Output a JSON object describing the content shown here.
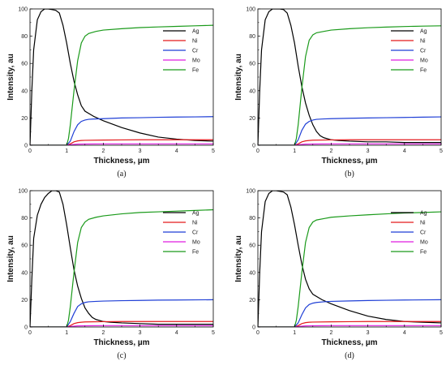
{
  "colors": {
    "Ag": "#000000",
    "Ni": "#e41a1c",
    "Cr": "#1f3fd6",
    "Mo": "#e01ce0",
    "Fe": "#1a9a1a"
  },
  "chart_data": [
    {
      "type": "line",
      "caption": "(a)",
      "xlabel": "Thickness, µm",
      "ylabel": "Intensity, au",
      "xlim": [
        0,
        5
      ],
      "ylim": [
        0,
        100
      ],
      "xticks": [
        "0",
        "1",
        "2",
        "3",
        "4",
        "5"
      ],
      "yticks": [
        "0",
        "20",
        "40",
        "60",
        "80",
        "100"
      ],
      "grid": false,
      "legend": "top-right",
      "series": [
        {
          "name": "Ag",
          "x": [
            0,
            0.05,
            0.1,
            0.2,
            0.3,
            0.4,
            0.5,
            0.6,
            0.7,
            0.8,
            0.9,
            1.0,
            1.1,
            1.2,
            1.3,
            1.4,
            1.5,
            1.75,
            2.0,
            2.5,
            3.0,
            3.5,
            4.0,
            4.5,
            5.0
          ],
          "y": [
            0,
            40,
            70,
            92,
            98,
            100,
            100,
            99.5,
            99,
            97,
            88,
            75,
            60,
            47,
            37,
            29,
            25,
            21,
            18,
            13,
            9,
            6,
            4.5,
            3.5,
            3
          ]
        },
        {
          "name": "Ni",
          "x": [
            0,
            1.0,
            1.1,
            1.2,
            1.3,
            1.4,
            1.5,
            2.0,
            2.5,
            3.0,
            4.0,
            5.0
          ],
          "y": [
            0,
            0,
            1,
            2.5,
            3.2,
            3.5,
            3.6,
            3.8,
            3.9,
            4,
            4,
            4
          ]
        },
        {
          "name": "Cr",
          "x": [
            0,
            1.0,
            1.1,
            1.2,
            1.3,
            1.4,
            1.5,
            1.6,
            1.7,
            2.0,
            2.5,
            3.0,
            3.5,
            4.0,
            4.5,
            5.0
          ],
          "y": [
            0,
            0,
            3,
            10,
            15,
            17.5,
            18.5,
            19,
            19.2,
            19.5,
            20,
            20.2,
            20.5,
            20.7,
            20.8,
            21
          ]
        },
        {
          "name": "Mo",
          "x": [
            0,
            1.0,
            1.1,
            1.2,
            1.3,
            1.5,
            2.0,
            3.0,
            4.0,
            5.0
          ],
          "y": [
            0,
            0,
            0.3,
            0.6,
            0.8,
            0.9,
            1,
            1,
            1,
            1
          ]
        },
        {
          "name": "Fe",
          "x": [
            0,
            1.0,
            1.05,
            1.1,
            1.2,
            1.3,
            1.4,
            1.5,
            1.6,
            1.8,
            2.0,
            2.5,
            3.0,
            3.5,
            4.0,
            4.5,
            5.0
          ],
          "y": [
            0,
            0,
            5,
            15,
            40,
            62,
            75,
            80,
            82,
            83.5,
            84.5,
            85.5,
            86.3,
            86.8,
            87.2,
            87.6,
            88
          ]
        }
      ]
    },
    {
      "type": "line",
      "caption": "(b)",
      "xlabel": "Thickness, µm",
      "ylabel": "Intensity, au",
      "xlim": [
        0,
        5
      ],
      "ylim": [
        0,
        100
      ],
      "xticks": [
        "0",
        "1",
        "2",
        "3",
        "4",
        "5"
      ],
      "yticks": [
        "0",
        "20",
        "40",
        "60",
        "80",
        "100"
      ],
      "grid": false,
      "legend": "top-right",
      "series": [
        {
          "name": "Ag",
          "x": [
            0,
            0.05,
            0.1,
            0.2,
            0.3,
            0.4,
            0.5,
            0.6,
            0.7,
            0.8,
            0.9,
            1.0,
            1.1,
            1.2,
            1.3,
            1.4,
            1.5,
            1.6,
            1.7,
            1.8,
            2.0,
            2.2,
            2.5,
            3.0,
            3.5,
            4.0,
            4.5,
            5.0
          ],
          "y": [
            0,
            40,
            70,
            92,
            98,
            100,
            100,
            100,
            99.5,
            97,
            88,
            75,
            58,
            43,
            31,
            22,
            15,
            10,
            7,
            5.5,
            4,
            3.5,
            3,
            2.5,
            2.5,
            2,
            2,
            2
          ]
        },
        {
          "name": "Ni",
          "x": [
            0,
            1.0,
            1.1,
            1.2,
            1.3,
            1.4,
            1.5,
            2.0,
            2.5,
            3.0,
            4.0,
            5.0
          ],
          "y": [
            0,
            0,
            1,
            2.5,
            3.2,
            3.5,
            3.7,
            3.9,
            4,
            4,
            4,
            4
          ]
        },
        {
          "name": "Cr",
          "x": [
            0,
            1.0,
            1.1,
            1.2,
            1.3,
            1.4,
            1.5,
            1.6,
            1.8,
            2.0,
            2.5,
            3.0,
            3.5,
            4.0,
            4.5,
            5.0
          ],
          "y": [
            0,
            0,
            4,
            11,
            15.5,
            17.5,
            18.5,
            19,
            19.3,
            19.5,
            19.8,
            20,
            20.2,
            20.4,
            20.6,
            20.8
          ]
        },
        {
          "name": "Mo",
          "x": [
            0,
            1.0,
            1.1,
            1.2,
            1.3,
            1.5,
            2.0,
            3.0,
            4.0,
            5.0
          ],
          "y": [
            0,
            0,
            0.3,
            0.6,
            0.8,
            0.9,
            1,
            1,
            1,
            1
          ]
        },
        {
          "name": "Fe",
          "x": [
            0,
            1.0,
            1.05,
            1.1,
            1.2,
            1.3,
            1.4,
            1.5,
            1.6,
            1.8,
            2.0,
            2.5,
            3.0,
            3.5,
            4.0,
            4.5,
            5.0
          ],
          "y": [
            0,
            0,
            5,
            15,
            42,
            65,
            77,
            81,
            82.5,
            83.5,
            84.5,
            85.5,
            86.2,
            86.7,
            87.1,
            87.4,
            87.6
          ]
        }
      ]
    },
    {
      "type": "line",
      "caption": "(c)",
      "xlabel": "Thickness, µm",
      "ylabel": "Intensity, au",
      "xlim": [
        0,
        5
      ],
      "ylim": [
        0,
        100
      ],
      "xticks": [
        "0",
        "1",
        "2",
        "3",
        "4",
        "5"
      ],
      "yticks": [
        "0",
        "20",
        "40",
        "60",
        "80",
        "100"
      ],
      "grid": false,
      "legend": "top-right",
      "series": [
        {
          "name": "Ag",
          "x": [
            0,
            0.05,
            0.1,
            0.2,
            0.3,
            0.4,
            0.5,
            0.6,
            0.7,
            0.8,
            0.9,
            1.0,
            1.1,
            1.2,
            1.3,
            1.4,
            1.5,
            1.6,
            1.7,
            1.8,
            2.0,
            2.2,
            2.5,
            3.0,
            3.5,
            4.0,
            4.5,
            5.0
          ],
          "y": [
            0,
            35,
            65,
            82,
            90,
            95,
            98,
            100,
            100,
            99,
            90,
            75,
            58,
            42,
            30,
            21,
            14,
            10,
            7,
            5.5,
            4,
            3.5,
            3,
            2.5,
            2,
            2,
            2,
            2
          ]
        },
        {
          "name": "Ni",
          "x": [
            0,
            1.0,
            1.1,
            1.2,
            1.3,
            1.4,
            1.5,
            2.0,
            2.5,
            3.0,
            4.0,
            5.0
          ],
          "y": [
            0,
            0,
            1,
            2.5,
            3.2,
            3.5,
            3.7,
            3.9,
            4,
            4,
            4,
            4
          ]
        },
        {
          "name": "Cr",
          "x": [
            0,
            1.0,
            1.1,
            1.2,
            1.3,
            1.4,
            1.5,
            1.6,
            1.8,
            2.0,
            2.5,
            3.0,
            3.5,
            4.0,
            4.5,
            5.0
          ],
          "y": [
            0,
            0,
            4,
            10,
            15,
            17,
            18,
            18.5,
            18.8,
            19,
            19.3,
            19.5,
            19.7,
            19.8,
            19.9,
            20
          ]
        },
        {
          "name": "Mo",
          "x": [
            0,
            1.0,
            1.1,
            1.2,
            1.3,
            1.5,
            2.0,
            3.0,
            4.0,
            5.0
          ],
          "y": [
            0,
            0,
            0.3,
            0.6,
            0.8,
            0.9,
            1,
            1,
            1,
            1
          ]
        },
        {
          "name": "Fe",
          "x": [
            0,
            1.0,
            1.05,
            1.1,
            1.2,
            1.3,
            1.4,
            1.5,
            1.6,
            1.8,
            2.0,
            2.5,
            3.0,
            3.5,
            4.0,
            4.5,
            5.0
          ],
          "y": [
            0,
            0,
            5,
            15,
            40,
            62,
            73,
            77,
            79,
            80.5,
            81.5,
            83,
            84,
            84.5,
            85,
            85.5,
            86
          ]
        }
      ]
    },
    {
      "type": "line",
      "caption": "(d)",
      "xlabel": "Thickness, µm",
      "ylabel": "Intensity, au",
      "xlim": [
        0,
        5
      ],
      "ylim": [
        0,
        100
      ],
      "xticks": [
        "0",
        "1",
        "2",
        "3",
        "4",
        "5"
      ],
      "yticks": [
        "0",
        "20",
        "40",
        "60",
        "80",
        "100"
      ],
      "grid": false,
      "legend": "top-right",
      "series": [
        {
          "name": "Ag",
          "x": [
            0,
            0.05,
            0.1,
            0.2,
            0.3,
            0.4,
            0.5,
            0.6,
            0.7,
            0.8,
            0.9,
            1.0,
            1.1,
            1.2,
            1.3,
            1.4,
            1.5,
            1.75,
            2.0,
            2.5,
            3.0,
            3.5,
            4.0,
            4.5,
            5.0
          ],
          "y": [
            0,
            40,
            70,
            92,
            98,
            100,
            100,
            99.5,
            99,
            97,
            88,
            75,
            60,
            46,
            35,
            28,
            24,
            20,
            17,
            12,
            8,
            5.5,
            4,
            3.5,
            3
          ]
        },
        {
          "name": "Ni",
          "x": [
            0,
            1.0,
            1.1,
            1.2,
            1.3,
            1.4,
            1.5,
            2.0,
            2.5,
            3.0,
            4.0,
            5.0
          ],
          "y": [
            0,
            0,
            1,
            2.5,
            3.2,
            3.5,
            3.6,
            3.8,
            3.9,
            4,
            4,
            4
          ]
        },
        {
          "name": "Cr",
          "x": [
            0,
            1.0,
            1.1,
            1.2,
            1.3,
            1.4,
            1.5,
            1.6,
            1.8,
            2.0,
            2.5,
            3.0,
            3.5,
            4.0,
            4.5,
            5.0
          ],
          "y": [
            0,
            0,
            3,
            9,
            14,
            16.5,
            17.5,
            18,
            18.5,
            18.8,
            19.1,
            19.4,
            19.6,
            19.8,
            19.9,
            20
          ]
        },
        {
          "name": "Mo",
          "x": [
            0,
            1.0,
            1.1,
            1.2,
            1.3,
            1.5,
            2.0,
            3.0,
            4.0,
            5.0
          ],
          "y": [
            0,
            0,
            0.3,
            0.6,
            0.8,
            0.9,
            1,
            1,
            1,
            1
          ]
        },
        {
          "name": "Fe",
          "x": [
            0,
            1.0,
            1.05,
            1.1,
            1.2,
            1.3,
            1.4,
            1.5,
            1.6,
            1.8,
            2.0,
            2.5,
            3.0,
            3.5,
            4.0,
            4.5,
            5.0
          ],
          "y": [
            0,
            0,
            5,
            15,
            40,
            62,
            73,
            77,
            78.5,
            79.5,
            80.5,
            81.5,
            82.3,
            83,
            83.6,
            84,
            84.5
          ]
        }
      ]
    }
  ]
}
